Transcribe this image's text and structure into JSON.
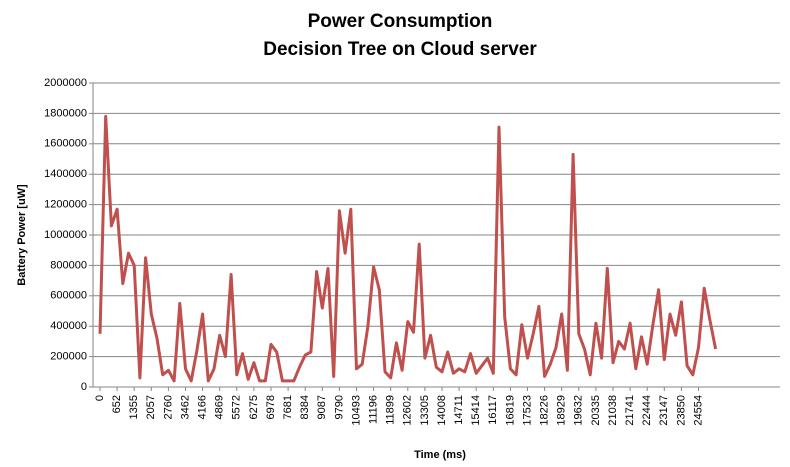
{
  "chart_data": {
    "type": "line",
    "title": "Power Consumption",
    "subtitle": "Decision Tree on Cloud server",
    "x_label": "Time (ms)",
    "y_label": "Battery Power [uW]",
    "color": "#c0504d",
    "grid": true,
    "ylim": [
      0,
      2000000
    ],
    "yticks": [
      0,
      200000,
      400000,
      600000,
      800000,
      1000000,
      1200000,
      1400000,
      1600000,
      1800000,
      2000000
    ],
    "categories": [
      "0",
      null,
      null,
      "652",
      null,
      null,
      "1355",
      null,
      null,
      "2057",
      null,
      null,
      "2760",
      null,
      null,
      "3462",
      null,
      null,
      "4166",
      null,
      null,
      "4869",
      null,
      null,
      "5572",
      null,
      null,
      "6275",
      null,
      null,
      "6978",
      null,
      null,
      "7681",
      null,
      null,
      "8384",
      null,
      null,
      "9087",
      null,
      null,
      "9790",
      null,
      null,
      "10493",
      null,
      null,
      "11196",
      null,
      null,
      "11899",
      null,
      null,
      "12602",
      null,
      null,
      "13305",
      null,
      null,
      "14008",
      null,
      null,
      "14711",
      null,
      null,
      "15414",
      null,
      null,
      "16117",
      null,
      null,
      "16819",
      null,
      null,
      "17523",
      null,
      null,
      "18226",
      null,
      null,
      "18929",
      null,
      null,
      "19632",
      null,
      null,
      "20335",
      null,
      null,
      "21038",
      null,
      null,
      "21741",
      null,
      null,
      "22444",
      null,
      null,
      "23147",
      null,
      null,
      "23850",
      null,
      null,
      "24554",
      null,
      null,
      null
    ],
    "values": [
      350000,
      1780000,
      1060000,
      1170000,
      680000,
      880000,
      800000,
      60000,
      850000,
      480000,
      320000,
      80000,
      110000,
      40000,
      550000,
      120000,
      40000,
      240000,
      480000,
      40000,
      120000,
      340000,
      200000,
      740000,
      80000,
      220000,
      50000,
      160000,
      40000,
      40000,
      280000,
      230000,
      40000,
      40000,
      40000,
      130000,
      210000,
      230000,
      760000,
      520000,
      780000,
      70000,
      1160000,
      880000,
      1170000,
      120000,
      150000,
      400000,
      790000,
      640000,
      100000,
      60000,
      290000,
      110000,
      430000,
      360000,
      940000,
      190000,
      340000,
      130000,
      100000,
      230000,
      90000,
      120000,
      100000,
      220000,
      90000,
      140000,
      190000,
      90000,
      1710000,
      460000,
      120000,
      80000,
      410000,
      190000,
      350000,
      530000,
      70000,
      150000,
      260000,
      480000,
      110000,
      1530000,
      350000,
      250000,
      80000,
      420000,
      190000,
      780000,
      160000,
      300000,
      250000,
      420000,
      120000,
      330000,
      150000,
      410000,
      640000,
      180000,
      480000,
      340000,
      560000,
      140000,
      80000,
      260000,
      650000,
      440000,
      250000
    ]
  }
}
